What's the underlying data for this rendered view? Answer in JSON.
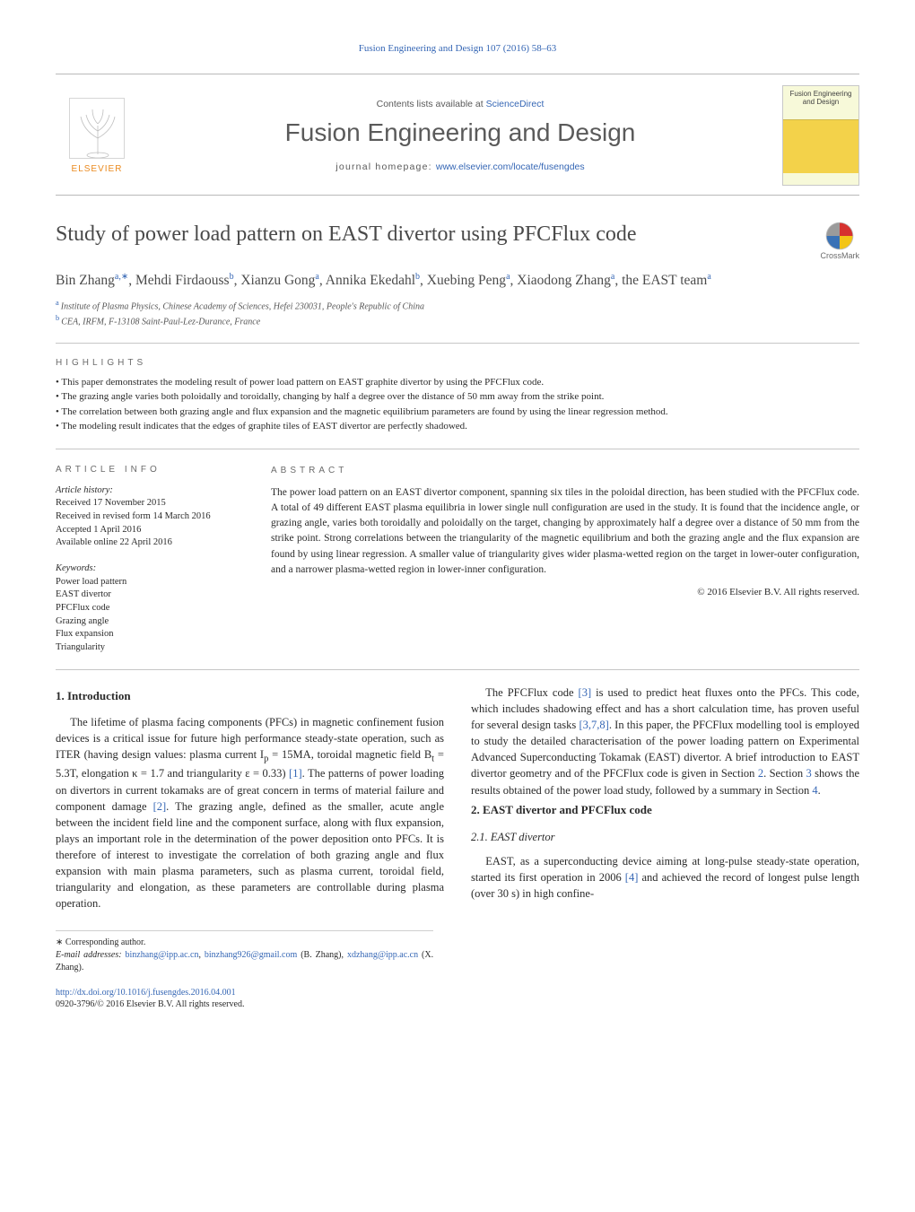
{
  "running_head": "Fusion Engineering and Design 107 (2016) 58–63",
  "masthead": {
    "publisher_label": "ELSEVIER",
    "contents_prefix": "Contents lists available at ",
    "contents_link": "ScienceDirect",
    "journal_name": "Fusion Engineering and Design",
    "home_prefix": "journal homepage: ",
    "home_link": "www.elsevier.com/locate/fusengdes",
    "cover_text": "Fusion Engineering and Design",
    "cover_colors": {
      "top": "#f7f9d9",
      "mid": "#f3d24a",
      "rule": "#d0b84d"
    }
  },
  "crossmark_label": "CrossMark",
  "title": "Study of power load pattern on EAST divertor using PFCFlux code",
  "authors_html_parts": [
    {
      "t": "Bin Zhang",
      "s": "a,∗"
    },
    {
      "t": ", Mehdi Firdaouss",
      "s": "b"
    },
    {
      "t": ", Xianzu Gong",
      "s": "a"
    },
    {
      "t": ", Annika Ekedahl",
      "s": "b"
    },
    {
      "t": ", Xuebing Peng",
      "s": "a"
    },
    {
      "t": ", Xiaodong Zhang",
      "s": "a"
    },
    {
      "t": ", the EAST team",
      "s": "a"
    }
  ],
  "affiliations": [
    {
      "s": "a",
      "t": "Institute of Plasma Physics, Chinese Academy of Sciences, Hefei 230031, People's Republic of China"
    },
    {
      "s": "b",
      "t": "CEA, IRFM, F-13108 Saint-Paul-Lez-Durance, France"
    }
  ],
  "highlights_head": "HIGHLIGHTS",
  "highlights": [
    "This paper demonstrates the modeling result of power load pattern on EAST graphite divertor by using the PFCFlux code.",
    "The grazing angle varies both poloidally and toroidally, changing by half a degree over the distance of 50 mm away from the strike point.",
    "The correlation between both grazing angle and flux expansion and the magnetic equilibrium parameters are found by using the linear regression method.",
    "The modeling result indicates that the edges of graphite tiles of EAST divertor are perfectly shadowed."
  ],
  "article_info_head": "ARTICLE INFO",
  "abstract_head": "ABSTRACT",
  "history_label": "Article history:",
  "history": [
    "Received 17 November 2015",
    "Received in revised form 14 March 2016",
    "Accepted 1 April 2016",
    "Available online 22 April 2016"
  ],
  "keywords_label": "Keywords:",
  "keywords": [
    "Power load pattern",
    "EAST divertor",
    "PFCFlux code",
    "Grazing angle",
    "Flux expansion",
    "Triangularity"
  ],
  "abstract": "The power load pattern on an EAST divertor component, spanning six tiles in the poloidal direction, has been studied with the PFCFlux code. A total of 49 different EAST plasma equilibria in lower single null configuration are used in the study. It is found that the incidence angle, or grazing angle, varies both toroidally and poloidally on the target, changing by approximately half a degree over a distance of 50 mm from the strike point. Strong correlations between the triangularity of the magnetic equilibrium and both the grazing angle and the flux expansion are found by using linear regression. A smaller value of triangularity gives wider plasma-wetted region on the target in lower-outer configuration, and a narrower plasma-wetted region in lower-inner configuration.",
  "copyright": "© 2016 Elsevier B.V. All rights reserved.",
  "sections": {
    "s1_head": "1. Introduction",
    "s1_p1_a": "The lifetime of plasma facing components (PFCs) in magnetic confinement fusion devices is a critical issue for future high performance steady-state operation, such as ITER (having design values: plasma current I",
    "s1_p1_b": " = 15MA, toroidal magnetic field B",
    "s1_p1_c": " = 5.3T, elongation κ = 1.7 and triangularity ε = 0.33) ",
    "s1_ref1": "[1]",
    "s1_p1_d": ". The patterns of power loading on divertors in current tokamaks are of great concern in terms of material failure and component damage ",
    "s1_ref2": "[2]",
    "s1_p1_e": ". The grazing angle, defined as the smaller, acute angle between the incident field line and the component surface, along with flux expansion, plays an important role in the determination of the power deposition onto PFCs. It is therefore of interest to investigate the correlation of both grazing angle and flux expansion with main plasma parameters, such as plasma current, toroidal field, triangularity and elongation, as these parameters are controllable during plasma operation.",
    "s1_p2_a": "The PFCFlux code ",
    "s1_ref3a": "[3]",
    "s1_p2_b": " is used to predict heat fluxes onto the PFCs. This code, which includes shadowing effect and has a short calculation time, has proven useful for several design tasks ",
    "s1_ref378": "[3,7,8]",
    "s1_p2_c": ". In this paper, the PFCFlux modelling tool is employed to study the detailed characterisation of the power loading pattern on Experimental Advanced Superconducting Tokamak (EAST) divertor. A brief introduction to EAST divertor geometry and of the PFCFlux code is given in Section ",
    "s1_sec2": "2",
    "s1_p2_d": ". Section ",
    "s1_sec3": "3",
    "s1_p2_e": " shows the results obtained of the power load study, followed by a summary in Section ",
    "s1_sec4": "4",
    "s1_p2_f": ".",
    "s2_head": "2. EAST divertor and PFCFlux code",
    "s21_head": "2.1. EAST divertor",
    "s21_p1_a": "EAST, as a superconducting device aiming at long-pulse steady-state operation, started its first operation in 2006 ",
    "s21_ref4": "[4]",
    "s21_p1_b": " and achieved the record of longest pulse length (over 30 s) in high confine-"
  },
  "footnote": {
    "corr_label": "∗ Corresponding author.",
    "email_label": "E-mail addresses:",
    "e1": "binzhang@ipp.ac.cn",
    "e2": "binzhang926@gmail.com",
    "e1_who": " (B. Zhang), ",
    "e3": "xdzhang@ipp.ac.cn",
    "e3_who": " (X. Zhang)."
  },
  "footer": {
    "doi": "http://dx.doi.org/10.1016/j.fusengdes.2016.04.001",
    "issn_line": "0920-3796/© 2016 Elsevier B.V. All rights reserved."
  },
  "colors": {
    "link": "#3667b5",
    "heading_gray": "#6b6b6b",
    "elsevier_orange": "#ea8a1f"
  }
}
